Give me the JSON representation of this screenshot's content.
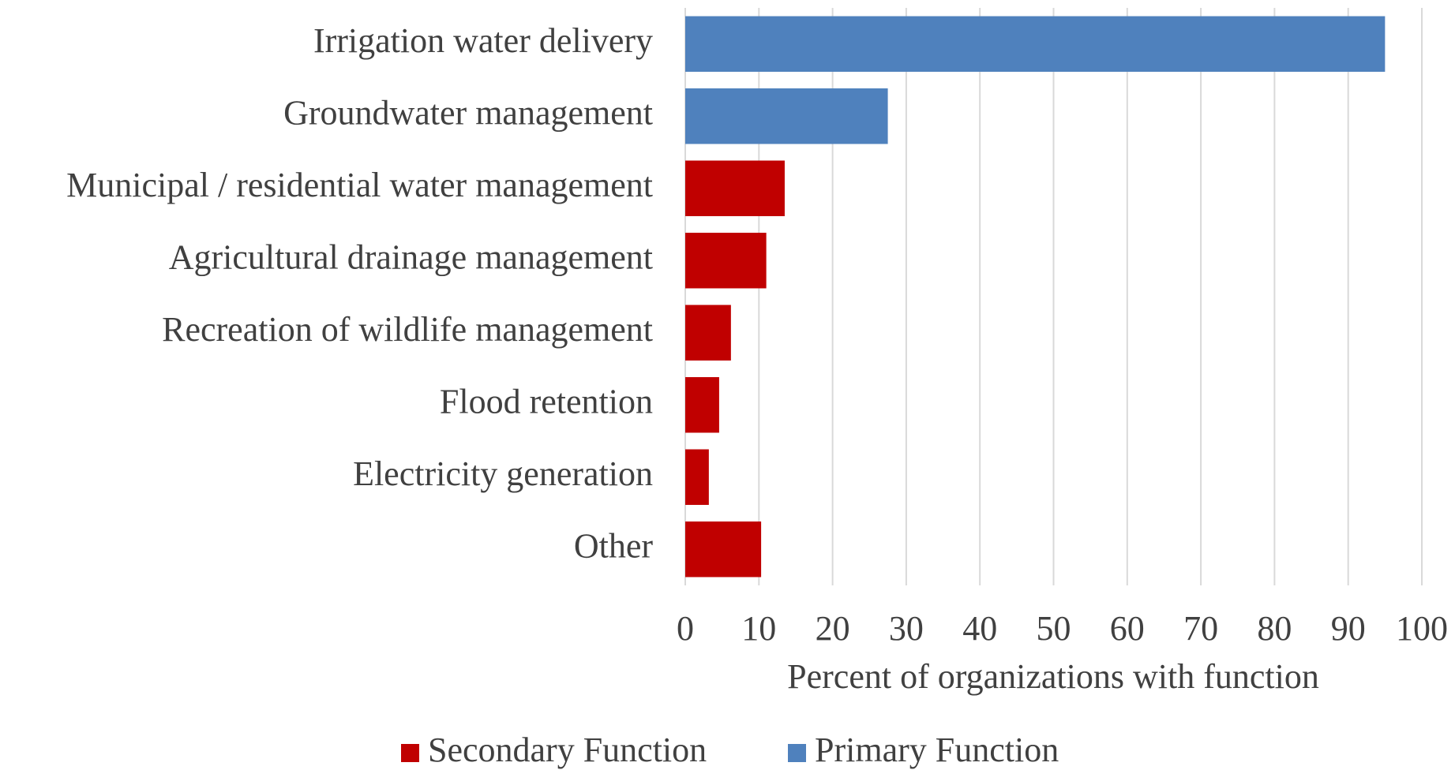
{
  "chart_data": {
    "type": "bar",
    "orientation": "horizontal",
    "categories": [
      "Irrigation water delivery",
      "Groundwater management",
      "Municipal / residential water management",
      "Agricultural drainage management",
      "Recreation of wildlife management",
      "Flood retention",
      "Electricity generation",
      "Other"
    ],
    "series": [
      {
        "name": "Secondary Function",
        "color": "#c00000",
        "values": [
          null,
          null,
          13.5,
          11,
          6.2,
          4.6,
          3.2,
          10.3
        ]
      },
      {
        "name": "Primary Function",
        "color": "#4f81bd",
        "values": [
          95,
          27.5,
          null,
          null,
          null,
          null,
          null,
          null
        ]
      }
    ],
    "xlabel": "Percent of organizations with function",
    "xlim": [
      0,
      100
    ],
    "xticks": [
      0,
      10,
      20,
      30,
      40,
      50,
      60,
      70,
      80,
      90,
      100
    ],
    "grid": true,
    "legend": "bottom"
  }
}
